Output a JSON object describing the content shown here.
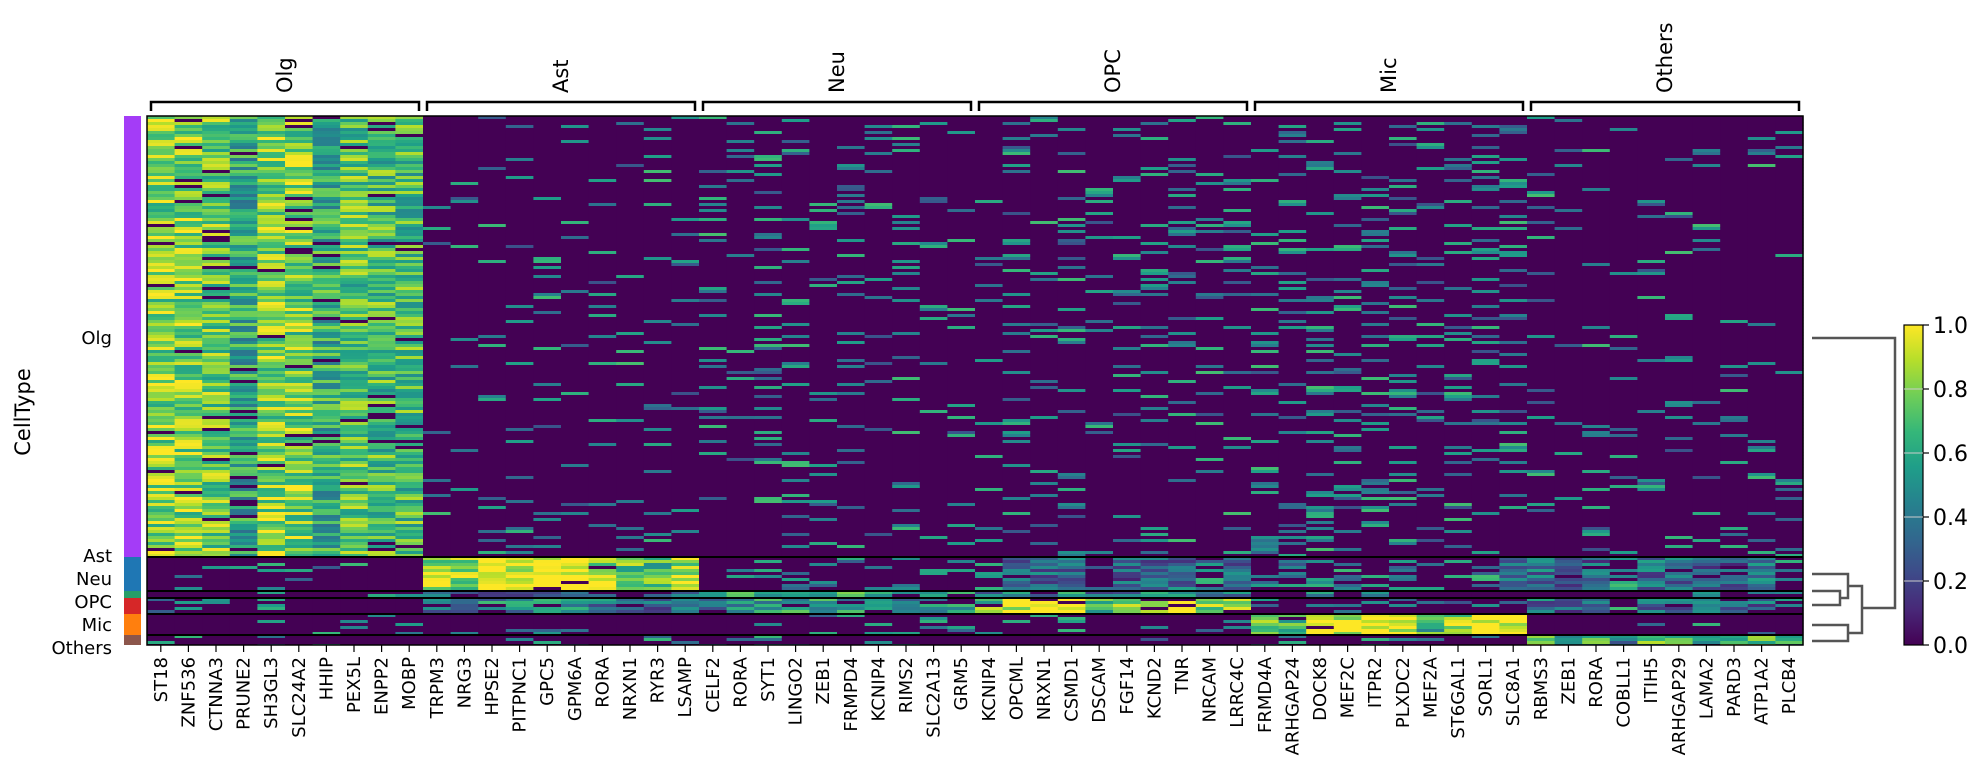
{
  "chart_data": {
    "type": "heatmap",
    "ylabel": "CellType",
    "cell_types": [
      {
        "name": "Olg",
        "color": "#a43cf7"
      },
      {
        "name": "Ast",
        "color": "#1f77b4"
      },
      {
        "name": "Neu",
        "color": "#279e68"
      },
      {
        "name": "OPC",
        "color": "#d62728"
      },
      {
        "name": "Mic",
        "color": "#ff7f0e"
      },
      {
        "name": "Others",
        "color": "#8c564b"
      }
    ],
    "gene_groups": [
      {
        "label": "Olg",
        "genes": [
          "ST18",
          "ZNF536",
          "CTNNA3",
          "PRUNE2",
          "SH3GL3",
          "SLC24A2",
          "HHIP",
          "PEX5L",
          "ENPP2",
          "MOBP"
        ]
      },
      {
        "label": "Ast",
        "genes": [
          "TRPM3",
          "NRG3",
          "HPSE2",
          "PITPNC1",
          "GPC5",
          "GPM6A",
          "RORA",
          "NRXN1",
          "RYR3",
          "LSAMP"
        ]
      },
      {
        "label": "Neu",
        "genes": [
          "CELF2",
          "RORA",
          "SYT1",
          "LINGO2",
          "ZEB1",
          "FRMPD4",
          "KCNIP4",
          "RIMS2",
          "SLC2A13",
          "GRM5"
        ]
      },
      {
        "label": "OPC",
        "genes": [
          "KCNIP4",
          "OPCML",
          "NRXN1",
          "CSMD1",
          "DSCAM",
          "FGF14",
          "KCND2",
          "TNR",
          "NRCAM",
          "LRRC4C"
        ]
      },
      {
        "label": "Mic",
        "genes": [
          "FRMD4A",
          "ARHGAP24",
          "DOCK8",
          "MEF2C",
          "ITPR2",
          "PLXDC2",
          "MEF2A",
          "ST6GAL1",
          "SORL1",
          "SLC8A1"
        ]
      },
      {
        "label": "Others",
        "genes": [
          "RBMS3",
          "ZEB1",
          "RORA",
          "COBLL1",
          "ITIH5",
          "ARHGAP29",
          "LAMA2",
          "PARD3",
          "ATP1A2",
          "PLCB4"
        ]
      }
    ],
    "approx_mean_expression_by_gene_group_and_cell_type": {
      "Olg": [
        0.75,
        0.1,
        0.1,
        0.15,
        0.1,
        0.1
      ],
      "Ast": [
        0.05,
        0.85,
        0.3,
        0.4,
        0.05,
        0.15
      ],
      "Neu": [
        0.1,
        0.2,
        0.6,
        0.5,
        0.15,
        0.15
      ],
      "OPC": [
        0.1,
        0.3,
        0.4,
        0.85,
        0.1,
        0.05
      ],
      "Mic": [
        0.15,
        0.25,
        0.15,
        0.15,
        0.85,
        0.2
      ],
      "Others": [
        0.05,
        0.3,
        0.2,
        0.3,
        0.02,
        0.6
      ]
    },
    "colorbar": {
      "colormap": "viridis",
      "range": [
        0.0,
        1.0
      ],
      "ticks": [
        "0.0",
        "0.2",
        "0.4",
        "0.6",
        "0.8",
        "1.0"
      ]
    },
    "dendrogram": "((Olg),((Ast,(Neu,OPC)),(Mic,Others)))"
  }
}
